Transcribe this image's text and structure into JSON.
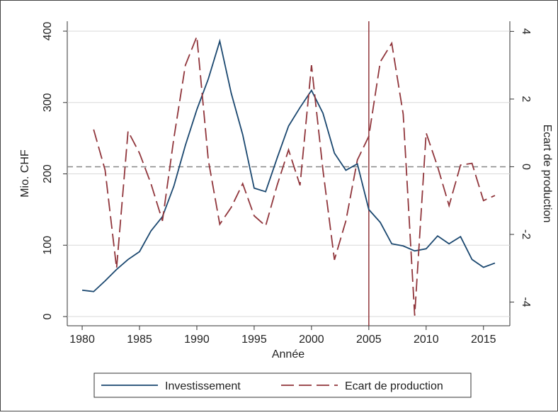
{
  "chart_data": {
    "type": "line",
    "x": [
      1980,
      1981,
      1982,
      1983,
      1984,
      1985,
      1986,
      1987,
      1988,
      1989,
      1990,
      1991,
      1992,
      1993,
      1994,
      1995,
      1996,
      1997,
      1998,
      1999,
      2000,
      2001,
      2002,
      2003,
      2004,
      2005,
      2006,
      2007,
      2008,
      2009,
      2010,
      2011,
      2012,
      2013,
      2014,
      2015,
      2016
    ],
    "xlabel": "Année",
    "ylabel": "Mio. CHF",
    "y2label": "Ecart de production",
    "xlim": [
      1978.7,
      2017.3
    ],
    "xticks": [
      1980,
      1985,
      1990,
      1995,
      2000,
      2005,
      2010,
      2015
    ],
    "ylim": [
      -12.9,
      413.9
    ],
    "yticks": [
      0,
      100,
      200,
      300,
      400
    ],
    "y2lim": [
      -4.7,
      4.3
    ],
    "y2ticks": [
      -4,
      -2,
      0,
      2,
      4
    ],
    "grid": true,
    "refline_y2": 0,
    "refline_x": 2005,
    "refline_x_color": "#90353b",
    "series": [
      {
        "name": "Investissement",
        "color": "#1a476f",
        "dash": "none",
        "values": [
          37,
          35,
          50,
          66,
          80,
          91,
          120,
          140,
          183,
          240,
          290,
          333,
          386,
          313,
          255,
          180,
          175,
          222,
          267,
          293,
          317,
          285,
          229,
          205,
          214,
          150,
          132,
          102,
          99,
          92,
          95,
          113,
          102,
          112,
          80,
          69,
          75
        ]
      },
      {
        "name": "Ecart de production",
        "color": "#90353b",
        "dash": "18 7",
        "axis": "y2",
        "values": [
          null,
          1.1,
          -0.1,
          -3.0,
          1.05,
          0.4,
          -0.5,
          -1.6,
          0.85,
          3.0,
          3.85,
          0.2,
          -1.7,
          -1.2,
          -0.5,
          -1.45,
          -1.75,
          -0.55,
          0.5,
          -0.55,
          3.0,
          -0.1,
          -2.75,
          -1.6,
          0.2,
          0.9,
          3.1,
          3.65,
          1.55,
          -4.4,
          1.0,
          0.0,
          -1.15,
          0.05,
          0.1,
          -1.0,
          -0.85
        ]
      }
    ],
    "legend": "bottom"
  }
}
